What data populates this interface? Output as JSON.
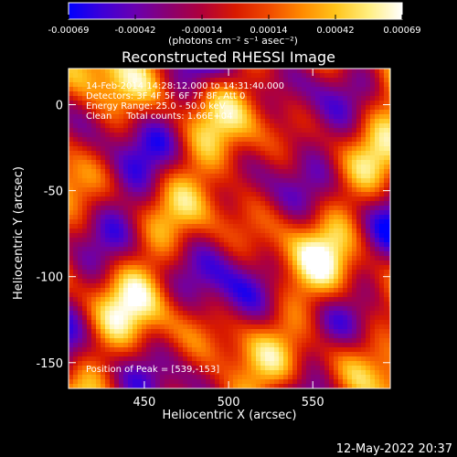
{
  "colorbar": {
    "ticks": [
      "-0.00069",
      "-0.00042",
      "-0.00014",
      "0.00014",
      "0.00042",
      "0.00069"
    ],
    "units_label": "(photons cm⁻² s⁻¹ asec⁻²)",
    "colormap": [
      "#0000ff",
      "#3d00d8",
      "#6a00b0",
      "#8a0070",
      "#b0003a",
      "#d81a00",
      "#f04a00",
      "#ff8a00",
      "#ffc41a",
      "#ffee80",
      "#ffffff"
    ]
  },
  "chart_data": {
    "type": "heatmap",
    "title": "Reconstructed RHESSI Image",
    "xlabel": "Heliocentric X (arcsec)",
    "ylabel": "Heliocentric Y (arcsec)",
    "xlim": [
      405,
      596
    ],
    "ylim": [
      -165,
      21
    ],
    "x_ticks": [
      450,
      500,
      550
    ],
    "y_ticks": [
      0,
      -50,
      -100,
      -150
    ],
    "value_range": [
      -0.00069,
      0.00069
    ],
    "annotations": [
      "14-Feb-2014 14:28:12.000 to 14:31:40.000",
      "Detectors: 3F 4F 5F 6F 7F 8F, Att 0",
      "Energy Range: 25.0 - 50.0 keV",
      "Clean     Total counts: 1.66E+04"
    ],
    "peak_label": "Position of Peak = [539,-153]",
    "peak": [
      539,
      -153
    ]
  },
  "footer": {
    "timestamp": "12-May-2022 20:37"
  }
}
